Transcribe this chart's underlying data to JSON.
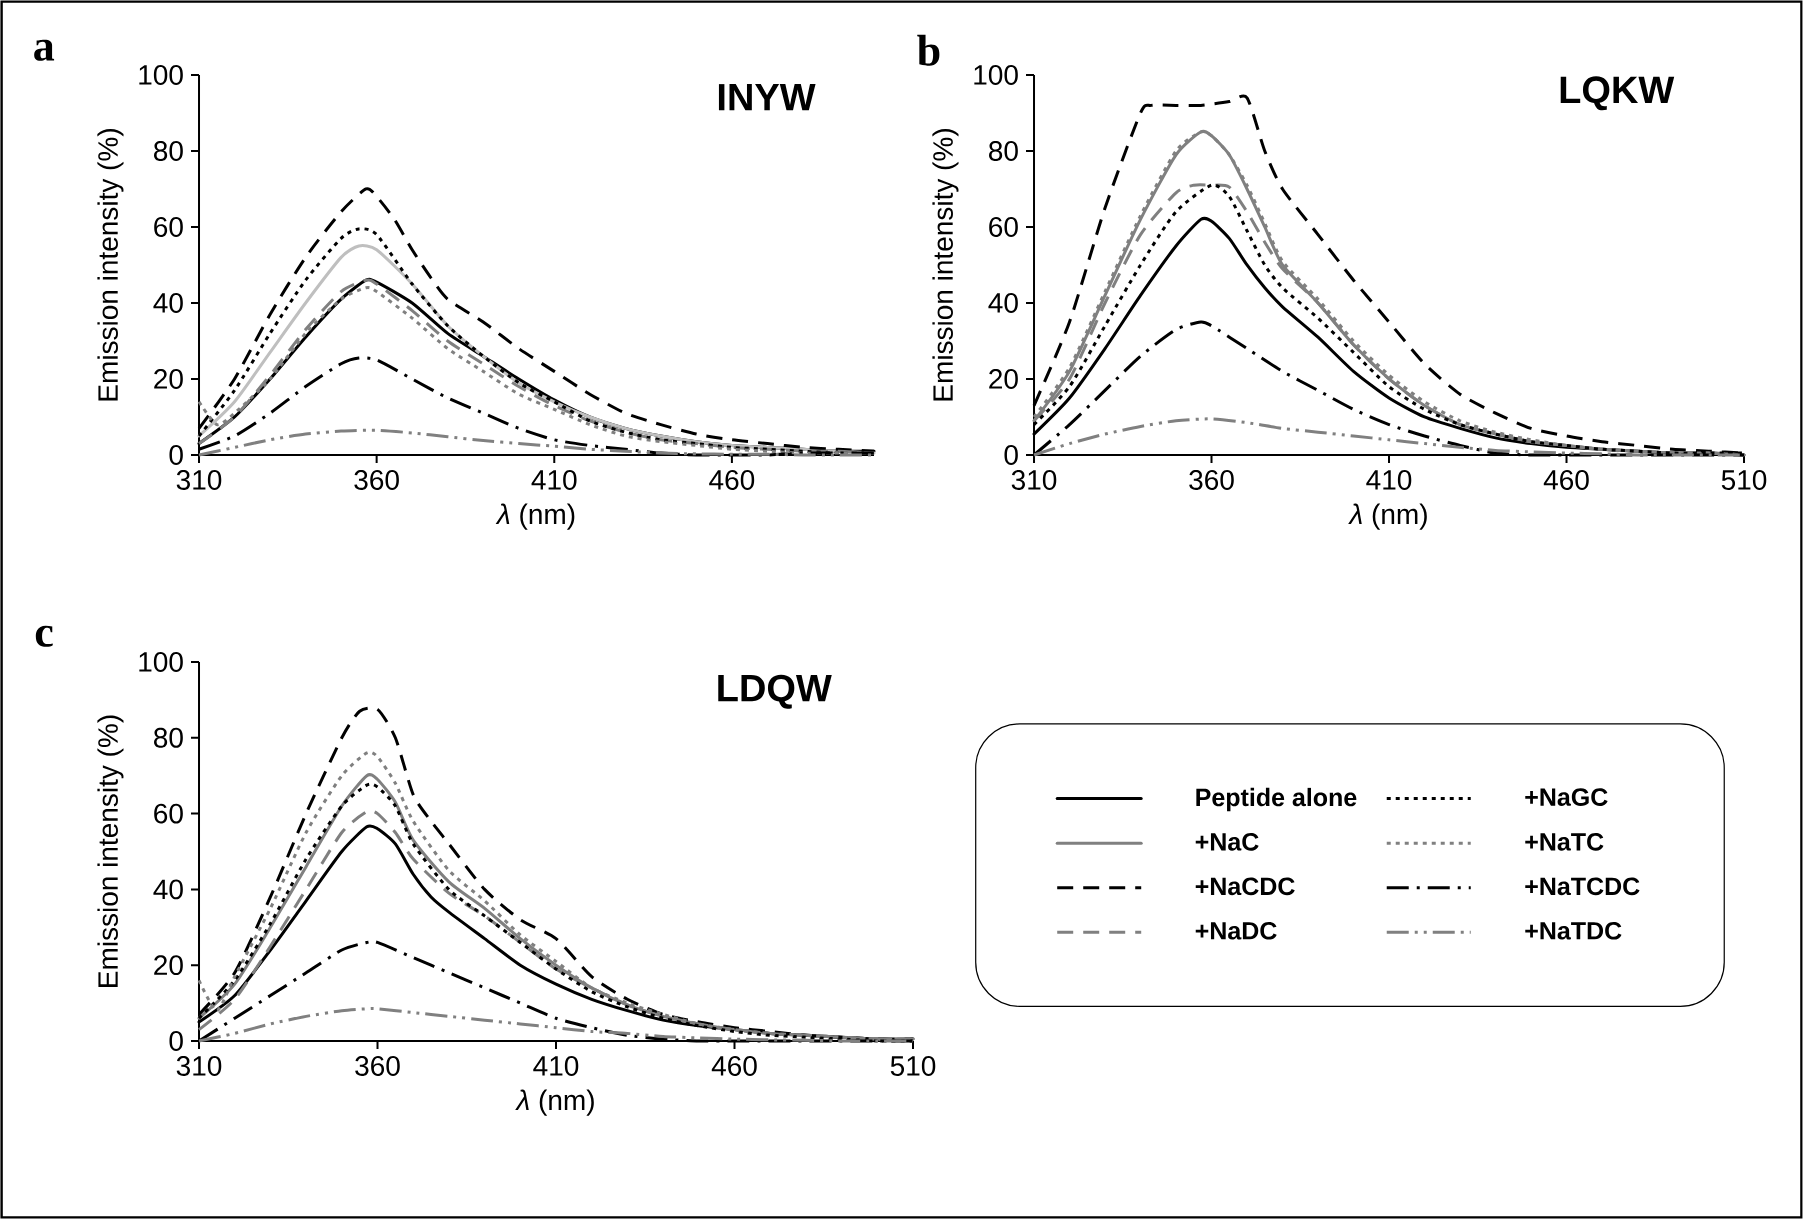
{
  "chart_data": [
    {
      "type": "line",
      "title": "INYW",
      "xlabel": "*λ* (nm)",
      "ylabel": "Emission intensity (%)",
      "annotations": [
        "a"
      ],
      "xlim": [
        310,
        500
      ],
      "ylim": [
        0,
        100
      ],
      "xticks": [
        310,
        360,
        410,
        460
      ],
      "yticks": [
        0,
        20,
        40,
        60,
        80,
        100
      ],
      "series": [
        {
          "color": "#000000",
          "line_style": "solid",
          "x": [
            310,
            320,
            330,
            340,
            350,
            357,
            360,
            370,
            380,
            390,
            400,
            410,
            420,
            430,
            440,
            450,
            460,
            470,
            480,
            490,
            500
          ],
          "values": [
            3,
            10,
            20,
            31,
            41,
            46,
            45.5,
            40,
            32,
            26,
            20,
            14.5,
            10,
            7,
            5,
            3.5,
            2.5,
            2,
            1.5,
            1,
            1
          ]
        },
        {
          "color": "#bfbfbf",
          "line_style": "solid",
          "x": [
            310,
            320,
            330,
            340,
            350,
            355,
            360,
            370,
            380,
            390,
            400,
            410,
            420,
            430,
            440,
            450,
            460,
            470,
            480,
            490,
            500
          ],
          "values": [
            5,
            14,
            27,
            40,
            52,
            55,
            54,
            45,
            34,
            26,
            19,
            14,
            10,
            7,
            5,
            3.5,
            2.5,
            2,
            1.5,
            1,
            0.5
          ]
        },
        {
          "color": "#000000",
          "line_style": "dashed",
          "x": [
            310,
            320,
            330,
            340,
            350,
            357,
            360,
            365,
            370,
            375,
            380,
            390,
            400,
            410,
            420,
            430,
            440,
            450,
            460,
            470,
            480,
            490,
            500
          ],
          "values": [
            7,
            20,
            37,
            52,
            64,
            70,
            68,
            62,
            54,
            47,
            41,
            35,
            28,
            22,
            16,
            11,
            8,
            5.5,
            4,
            3,
            2,
            1.5,
            1
          ]
        },
        {
          "color": "#808080",
          "line_style": "dashed",
          "x": [
            310,
            320,
            330,
            340,
            350,
            357,
            360,
            370,
            380,
            390,
            400,
            410,
            420,
            430,
            440,
            450,
            460,
            470,
            480,
            490,
            500
          ],
          "values": [
            3,
            10,
            21,
            33,
            43,
            46,
            45,
            38,
            30,
            24,
            18,
            13,
            9,
            6,
            4,
            3,
            2,
            1.5,
            1,
            1,
            0.5
          ]
        },
        {
          "color": "#000000",
          "line_style": "dotted",
          "x": [
            310,
            320,
            330,
            340,
            350,
            355,
            360,
            370,
            380,
            390,
            400,
            410,
            420,
            430,
            440,
            450,
            460,
            470,
            480,
            490,
            500
          ],
          "values": [
            5,
            17,
            32,
            46,
            57,
            59.5,
            58,
            45,
            34,
            26,
            19,
            14,
            9,
            6,
            4,
            3,
            2,
            1.5,
            1,
            0.5,
            0.5
          ]
        },
        {
          "color": "#808080",
          "line_style": "dotted",
          "x": [
            310,
            315,
            320,
            330,
            340,
            350,
            357,
            360,
            370,
            380,
            390,
            400,
            410,
            420,
            430,
            440,
            450,
            460,
            470,
            480,
            490,
            500
          ],
          "values": [
            14,
            8,
            11,
            20,
            32,
            41,
            44,
            43,
            36,
            28,
            22,
            16,
            12,
            8,
            5,
            3.5,
            2.5,
            1.5,
            1,
            0.5,
            0.5,
            0.5
          ]
        },
        {
          "color": "#000000",
          "line_style": "dashdot",
          "x": [
            310,
            320,
            330,
            340,
            350,
            355,
            360,
            370,
            380,
            390,
            400,
            410,
            420,
            430,
            440,
            450,
            460,
            470,
            480,
            490,
            500
          ],
          "values": [
            1.5,
            5,
            11,
            18,
            24,
            25.5,
            25,
            20,
            15,
            11,
            7,
            4,
            2.5,
            1.5,
            0.5,
            0,
            0,
            0,
            0.5,
            0.5,
            0.5
          ]
        },
        {
          "color": "#808080",
          "line_style": "dashdotdot",
          "x": [
            310,
            320,
            330,
            340,
            350,
            360,
            370,
            380,
            390,
            400,
            410,
            420,
            430,
            440,
            450,
            460,
            470,
            480,
            490,
            500
          ],
          "values": [
            0,
            2,
            4,
            5.5,
            6.3,
            6.5,
            5.8,
            4.8,
            3.8,
            3,
            2.3,
            1.5,
            1,
            0.5,
            0.3,
            0.2,
            0.2,
            0,
            0,
            0
          ]
        }
      ]
    },
    {
      "type": "line",
      "title": "LQKW",
      "xlabel": "*λ* (nm)",
      "ylabel": "Emission intensity (%)",
      "annotations": [
        "b"
      ],
      "xlim": [
        310,
        510
      ],
      "ylim": [
        0,
        100
      ],
      "xticks": [
        310,
        360,
        410,
        460,
        510
      ],
      "yticks": [
        0,
        20,
        40,
        60,
        80,
        100
      ],
      "series": [
        {
          "color": "#000000",
          "line_style": "solid",
          "x": [
            310,
            320,
            330,
            340,
            350,
            357,
            360,
            365,
            370,
            375,
            380,
            390,
            400,
            410,
            420,
            430,
            440,
            450,
            460,
            470,
            480,
            490,
            500,
            510
          ],
          "values": [
            5.5,
            15,
            28,
            42,
            55,
            62,
            61.5,
            57,
            50,
            44,
            39,
            31,
            22,
            15,
            10,
            7,
            4.5,
            3,
            2,
            1.5,
            1,
            0.5,
            0.5,
            0
          ]
        },
        {
          "color": "#808080",
          "line_style": "solid",
          "x": [
            310,
            320,
            330,
            340,
            350,
            357,
            360,
            365,
            370,
            375,
            380,
            390,
            400,
            410,
            420,
            430,
            440,
            450,
            460,
            470,
            480,
            490,
            500,
            510
          ],
          "values": [
            9,
            22,
            42,
            62,
            79,
            85,
            84,
            79,
            70,
            60,
            50,
            40,
            29,
            20,
            13,
            8,
            5.5,
            3.5,
            2.5,
            1.5,
            1,
            0.5,
            0.5,
            0
          ]
        },
        {
          "color": "#000000",
          "line_style": "dashed",
          "x": [
            310,
            320,
            330,
            340,
            343,
            350,
            357,
            365,
            370,
            375,
            380,
            390,
            400,
            410,
            420,
            430,
            440,
            450,
            460,
            470,
            480,
            490,
            500,
            510
          ],
          "values": [
            13,
            35,
            65,
            90,
            92,
            92,
            92,
            93,
            94,
            80,
            70,
            58,
            46,
            35,
            24,
            16,
            11,
            7,
            5,
            3.5,
            2.5,
            1.5,
            1,
            0.5
          ]
        },
        {
          "color": "#808080",
          "line_style": "dashed",
          "x": [
            310,
            320,
            330,
            340,
            350,
            355,
            360,
            365,
            370,
            375,
            380,
            390,
            400,
            410,
            420,
            430,
            440,
            450,
            460,
            470,
            480,
            490,
            500,
            510
          ],
          "values": [
            9,
            20,
            40,
            58,
            69,
            71,
            71,
            70.5,
            64,
            56,
            49,
            40,
            29,
            20,
            13,
            8,
            5.5,
            3.5,
            2.5,
            1.5,
            1,
            0.5,
            0.5,
            0
          ]
        },
        {
          "color": "#000000",
          "line_style": "dotted",
          "x": [
            310,
            320,
            330,
            340,
            350,
            360,
            365,
            370,
            375,
            380,
            390,
            400,
            410,
            420,
            430,
            440,
            450,
            460,
            470,
            480,
            490,
            500,
            510
          ],
          "values": [
            8,
            18,
            34,
            50,
            64,
            71,
            68,
            59,
            50,
            44,
            36,
            27,
            18,
            12,
            8,
            5.5,
            3.5,
            2.5,
            1.5,
            1,
            0.5,
            0.5,
            0.5
          ]
        },
        {
          "color": "#808080",
          "line_style": "dotted",
          "x": [
            310,
            320,
            330,
            340,
            350,
            357,
            360,
            365,
            370,
            375,
            380,
            390,
            400,
            410,
            420,
            430,
            440,
            450,
            460,
            470,
            480,
            490,
            500,
            510
          ],
          "values": [
            10,
            23,
            43,
            63,
            80,
            85,
            84,
            79,
            71,
            61,
            51,
            41,
            30,
            21,
            14,
            9,
            6,
            4,
            2.5,
            1.5,
            1,
            0.5,
            0.5,
            0
          ]
        },
        {
          "color": "#000000",
          "line_style": "dashdot",
          "x": [
            310,
            320,
            330,
            340,
            350,
            357,
            360,
            370,
            380,
            390,
            400,
            410,
            420,
            430,
            440,
            450,
            460,
            470,
            480,
            490,
            500,
            510
          ],
          "values": [
            0,
            8,
            17,
            26,
            33,
            35,
            34,
            28,
            22,
            17,
            12,
            8,
            5,
            2.5,
            0.5,
            0,
            0,
            0,
            0,
            0,
            0,
            0
          ]
        },
        {
          "color": "#808080",
          "line_style": "dashdotdot",
          "x": [
            310,
            320,
            330,
            340,
            350,
            360,
            370,
            380,
            390,
            400,
            410,
            420,
            430,
            440,
            450,
            460,
            470,
            480,
            490,
            500,
            510
          ],
          "values": [
            0,
            3,
            5.5,
            7.5,
            9,
            9.5,
            8.5,
            7,
            6,
            5,
            4,
            3,
            2,
            1.2,
            0.8,
            0.5,
            0.3,
            0,
            0,
            0,
            0
          ]
        }
      ]
    },
    {
      "type": "line",
      "title": "LDQW",
      "xlabel": "*λ* (nm)",
      "ylabel": "Emission intensity (%)",
      "annotations": [
        "c"
      ],
      "xlim": [
        310,
        510
      ],
      "ylim": [
        0,
        100
      ],
      "xticks": [
        310,
        360,
        410,
        460,
        510
      ],
      "yticks": [
        0,
        20,
        40,
        60,
        80,
        100
      ],
      "legend": "right",
      "series": [
        {
          "name": "Peptide alone",
          "color": "#000000",
          "line_style": "solid",
          "x": [
            310,
            320,
            330,
            340,
            350,
            357,
            360,
            365,
            370,
            375,
            380,
            390,
            400,
            410,
            420,
            430,
            440,
            450,
            460,
            470,
            480,
            490,
            500,
            510
          ],
          "values": [
            5,
            12,
            24,
            37,
            50,
            56.5,
            56,
            52,
            44,
            38,
            34,
            27,
            20,
            15,
            11,
            8,
            5.5,
            4,
            3,
            2,
            1.5,
            1,
            0.5,
            0.5
          ]
        },
        {
          "name": "+NaC",
          "color": "#808080",
          "line_style": "solid",
          "x": [
            310,
            320,
            330,
            340,
            350,
            357,
            360,
            365,
            370,
            380,
            390,
            400,
            410,
            420,
            430,
            440,
            450,
            460,
            470,
            480,
            490,
            500,
            510
          ],
          "values": [
            6,
            15,
            30,
            46,
            62,
            70,
            69,
            63,
            53,
            42,
            35,
            27,
            20,
            14,
            9.5,
            6.5,
            4.5,
            3,
            2,
            1.5,
            1,
            0.5,
            0.5
          ]
        },
        {
          "name": "+NaCDC",
          "color": "#000000",
          "line_style": "dashed",
          "x": [
            310,
            320,
            330,
            340,
            350,
            355,
            360,
            365,
            370,
            375,
            380,
            390,
            400,
            410,
            420,
            430,
            440,
            450,
            460,
            470,
            480,
            490,
            500,
            510
          ],
          "values": [
            7,
            18,
            38,
            60,
            80,
            87,
            87.5,
            80,
            65,
            58,
            52,
            40,
            32,
            27,
            17,
            11,
            7,
            5,
            3.5,
            2.5,
            1.5,
            1,
            0.5,
            0.5
          ]
        },
        {
          "name": "+NaDC",
          "color": "#808080",
          "line_style": "dashed",
          "x": [
            310,
            320,
            330,
            340,
            350,
            357,
            360,
            365,
            370,
            380,
            390,
            400,
            410,
            420,
            430,
            440,
            450,
            460,
            470,
            480,
            490,
            500,
            510
          ],
          "values": [
            3,
            11,
            25,
            40,
            55,
            60.5,
            60,
            55,
            48,
            39,
            33,
            26,
            19,
            14,
            9.5,
            6.5,
            4.5,
            3,
            2,
            1.5,
            1,
            0.5,
            0.5
          ]
        },
        {
          "name": "+NaGC",
          "color": "#000000",
          "line_style": "dotted",
          "x": [
            310,
            320,
            330,
            340,
            350,
            357,
            360,
            365,
            370,
            380,
            390,
            400,
            410,
            420,
            430,
            440,
            450,
            460,
            470,
            480,
            490,
            500,
            510
          ],
          "values": [
            6,
            16,
            31,
            48,
            62,
            67.5,
            67,
            62,
            52,
            40,
            33,
            26,
            19,
            13,
            9,
            6,
            4,
            2.5,
            1.5,
            1,
            0.5,
            0,
            0
          ]
        },
        {
          "name": "+NaTC",
          "color": "#808080",
          "line_style": "dotted",
          "x": [
            310,
            315,
            320,
            330,
            340,
            350,
            357,
            360,
            365,
            370,
            380,
            390,
            400,
            410,
            420,
            430,
            440,
            450,
            460,
            470,
            480,
            490,
            500,
            510
          ],
          "values": [
            16,
            8,
            17,
            35,
            55,
            70,
            76,
            75,
            68,
            58,
            45,
            37,
            28,
            21,
            14,
            10,
            7,
            4.5,
            3,
            2,
            1.5,
            1,
            0.5,
            0.5
          ]
        },
        {
          "name": "+NaTCDC",
          "color": "#000000",
          "line_style": "dashdot",
          "x": [
            310,
            320,
            330,
            340,
            350,
            357,
            360,
            370,
            380,
            390,
            400,
            410,
            420,
            430,
            440,
            450,
            460,
            470,
            480,
            490,
            500,
            510
          ],
          "values": [
            0,
            6,
            12,
            18,
            24,
            26,
            26,
            22,
            18,
            14,
            10,
            6,
            3.5,
            1.5,
            0.5,
            0,
            0,
            0,
            0,
            0,
            0,
            0
          ]
        },
        {
          "name": "+NaTDC",
          "color": "#808080",
          "line_style": "dashdotdot",
          "x": [
            310,
            320,
            330,
            340,
            350,
            357,
            360,
            370,
            380,
            390,
            400,
            410,
            420,
            430,
            440,
            450,
            460,
            470,
            480,
            490,
            500,
            510
          ],
          "values": [
            0,
            2,
            4.5,
            6.5,
            8,
            8.5,
            8.5,
            7.5,
            6.5,
            5.5,
            4.5,
            3.5,
            2.5,
            2,
            1.2,
            0.8,
            0.5,
            0.3,
            0.2,
            0,
            0,
            0
          ]
        }
      ]
    }
  ]
}
